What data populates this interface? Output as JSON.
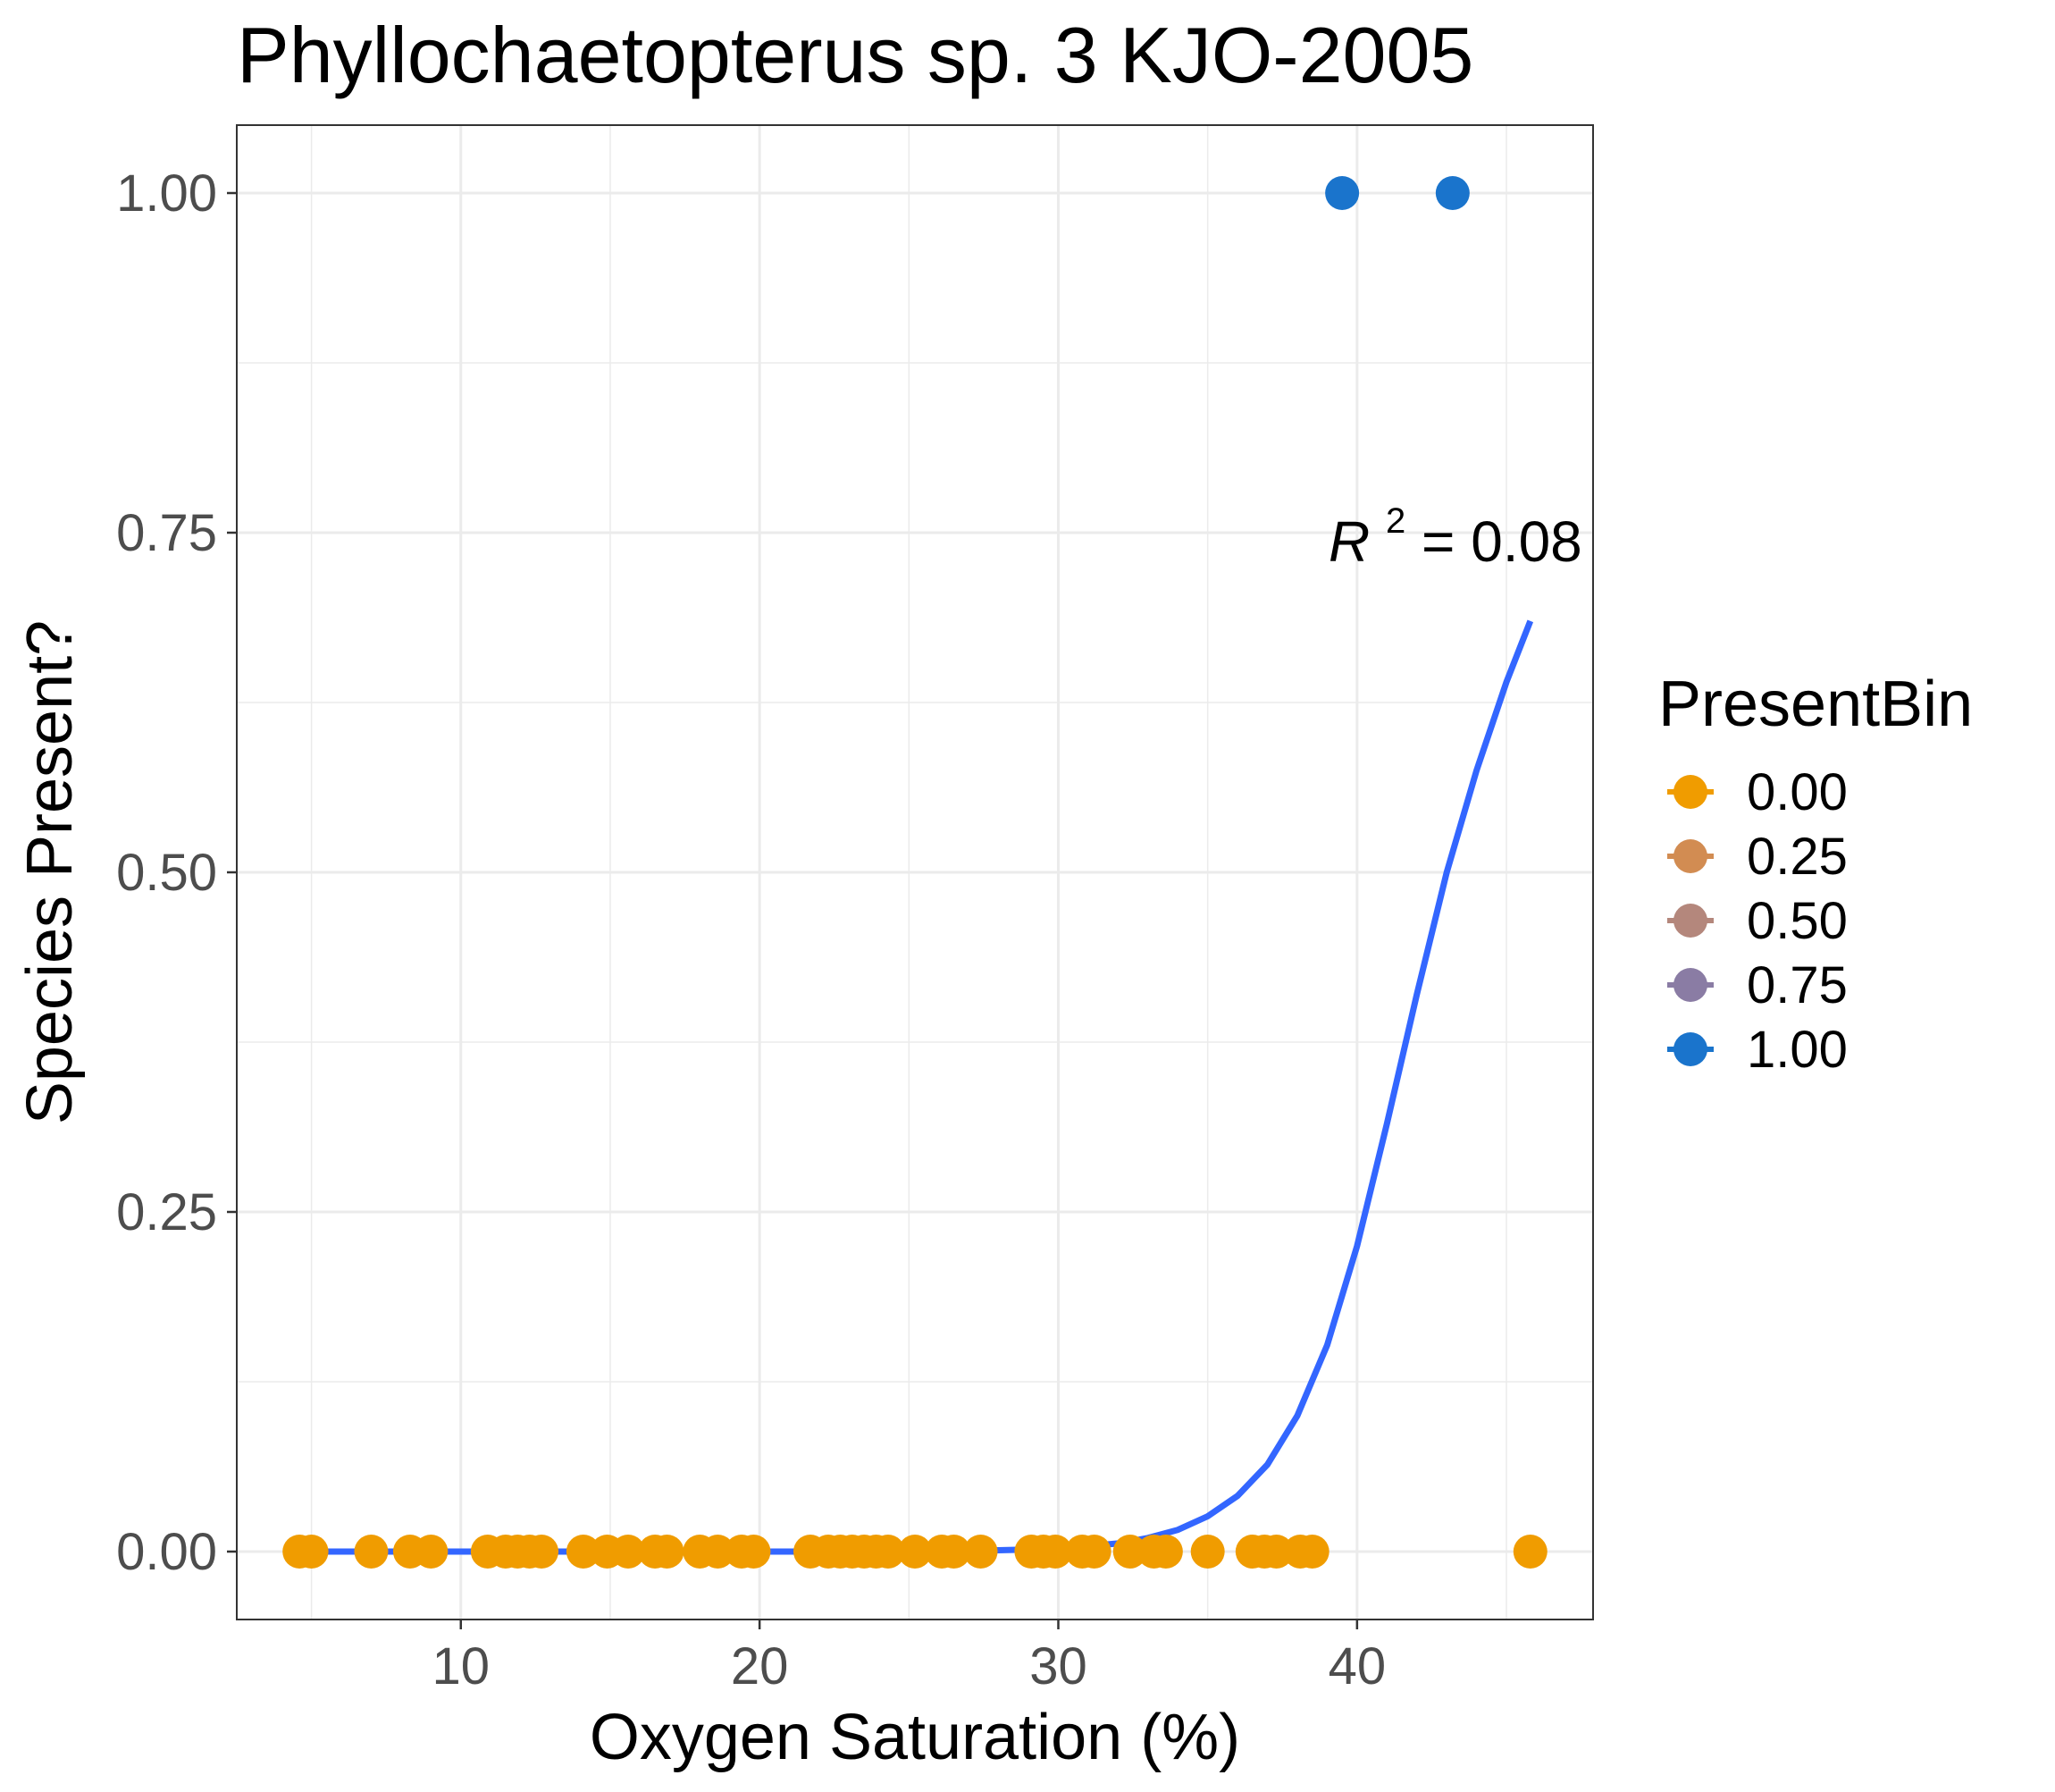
{
  "chart_data": {
    "type": "scatter",
    "title": "Phyllochaetopterus sp. 3 KJO-2005",
    "xlabel": "Oxygen Saturation (%)",
    "ylabel": "Species Present?",
    "xlim": [
      2.5,
      47.9
    ],
    "ylim": [
      -0.05,
      1.05
    ],
    "x_ticks": [
      10,
      20,
      30,
      40
    ],
    "x_tick_labels": [
      "10",
      "20",
      "30",
      "40"
    ],
    "y_ticks": [
      0,
      0.25,
      0.5,
      0.75,
      1.0
    ],
    "y_tick_labels": [
      "0.00",
      "0.25",
      "0.50",
      "0.75",
      "1.00"
    ],
    "grid": true,
    "legend": {
      "title": "PresentBin",
      "position": "right",
      "entries": [
        {
          "label": "0.00",
          "color": "#f09c00"
        },
        {
          "label": "0.25",
          "color": "#d28c52"
        },
        {
          "label": "0.50",
          "color": "#b4877c"
        },
        {
          "label": "0.75",
          "color": "#8a7ca4"
        },
        {
          "label": "1.00",
          "color": "#1a74cc"
        }
      ]
    },
    "series": [
      {
        "name": "0.00",
        "color": "#f09c00",
        "x": [
          4.6,
          5.0,
          7.0,
          8.3,
          9.0,
          10.9,
          11.5,
          11.9,
          12.3,
          12.7,
          14.1,
          14.9,
          15.6,
          16.5,
          16.9,
          18.0,
          18.6,
          19.4,
          19.8,
          21.7,
          22.3,
          22.7,
          23.1,
          23.5,
          23.9,
          24.3,
          25.2,
          26.1,
          26.5,
          27.4,
          29.1,
          29.5,
          29.9,
          30.8,
          31.2,
          32.4,
          33.2,
          33.6,
          35.0,
          36.5,
          36.9,
          37.3,
          38.1,
          38.5,
          45.8
        ],
        "y": [
          0,
          0,
          0,
          0,
          0,
          0,
          0,
          0,
          0,
          0,
          0,
          0,
          0,
          0,
          0,
          0,
          0,
          0,
          0,
          0,
          0,
          0,
          0,
          0,
          0,
          0,
          0,
          0,
          0,
          0,
          0,
          0,
          0,
          0,
          0,
          0,
          0,
          0,
          0,
          0,
          0,
          0,
          0,
          0,
          0
        ]
      },
      {
        "name": "1.00",
        "color": "#1a74cc",
        "x": [
          39.5,
          43.2
        ],
        "y": [
          1,
          1
        ]
      }
    ],
    "fit_line": {
      "type": "logistic",
      "color": "#3366ff",
      "x": [
        4.6,
        10,
        15,
        20,
        25,
        28,
        30,
        32,
        33,
        34,
        35,
        36,
        37,
        38,
        39,
        40,
        41,
        42,
        43,
        44,
        45,
        45.8
      ],
      "y": [
        0.0,
        0.0,
        0.0,
        0.0,
        0.0,
        0.001,
        0.002,
        0.006,
        0.01,
        0.016,
        0.026,
        0.041,
        0.064,
        0.1,
        0.152,
        0.225,
        0.315,
        0.41,
        0.5,
        0.575,
        0.64,
        0.685
      ]
    },
    "annotation": {
      "r_symbol": "R",
      "r_exponent": "2",
      "equals_value": " = 0.08"
    }
  }
}
